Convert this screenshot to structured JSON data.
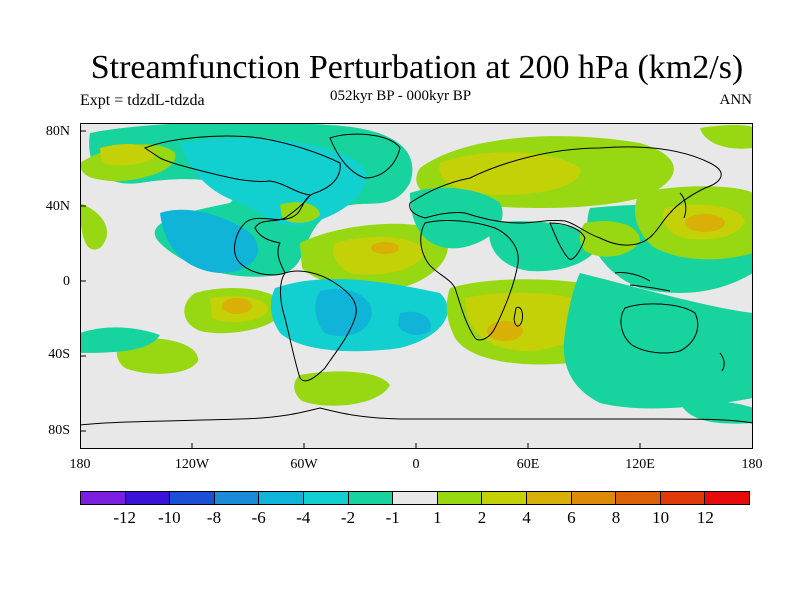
{
  "title": "Streamfunction Perturbation at 200 hPa (km2/s)",
  "subtitle": "052kyr BP - 000kyr BP",
  "left_label": "Expt = tdzdL-tdzda",
  "right_label": "ANN",
  "lat_labels": [
    "80N",
    "40N",
    "0",
    "40S",
    "80S"
  ],
  "lon_labels": [
    "180",
    "120W",
    "60W",
    "0",
    "60E",
    "120E",
    "180"
  ],
  "colorbar": {
    "colors": [
      "#7a1fe0",
      "#3a12d8",
      "#1c4fd8",
      "#1b8ad8",
      "#0fb4d8",
      "#12cfd0",
      "#17d49e",
      "#e8e8e8",
      "#97d812",
      "#c4d107",
      "#d8b007",
      "#dc8a07",
      "#dd6207",
      "#e03a0a",
      "#e80b0b"
    ],
    "labels": [
      "-12",
      "-10",
      "-8",
      "-6",
      "-4",
      "-2",
      "-1",
      "1",
      "2",
      "4",
      "6",
      "8",
      "10",
      "12"
    ]
  },
  "map_fill": {
    "neutral": "#e8e8e8",
    "teal": "#17d49e",
    "cyan": "#12cfd0",
    "blue": "#0fb4d8",
    "green": "#97d812",
    "yellow": "#c4d107",
    "orange": "#d8b007"
  }
}
